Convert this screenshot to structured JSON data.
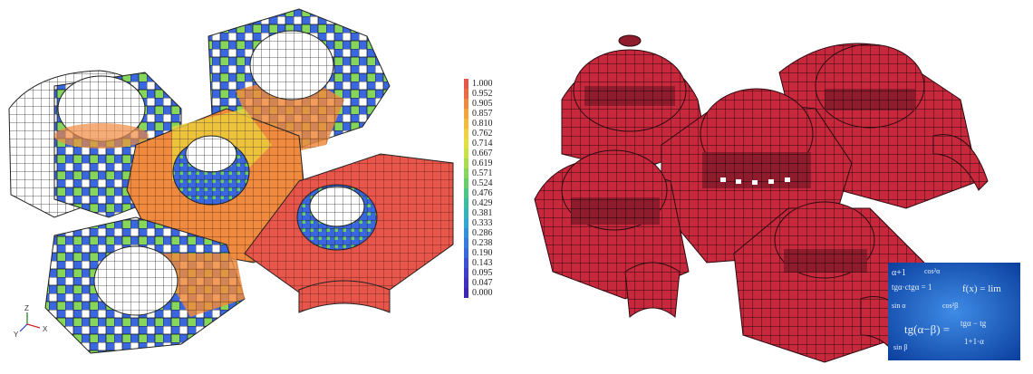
{
  "legend": {
    "values": [
      "1.000",
      "0.952",
      "0.905",
      "0.857",
      "0.810",
      "0.762",
      "0.714",
      "0.667",
      "0.619",
      "0.571",
      "0.524",
      "0.476",
      "0.429",
      "0.381",
      "0.333",
      "0.286",
      "0.238",
      "0.190",
      "0.143",
      "0.095",
      "0.047",
      "0.000"
    ],
    "colors": [
      "#e8554a",
      "#ec6a44",
      "#ef8a3e",
      "#f3a43b",
      "#f2bb3a",
      "#eed13c",
      "#e2e03f",
      "#c9e245",
      "#a8dd4f",
      "#86d65c",
      "#66cf6c",
      "#4bc784",
      "#3cbca0",
      "#35b3bd",
      "#32a6d2",
      "#3391dc",
      "#367ce0",
      "#3a66de",
      "#3d51d8",
      "#3f3fcf",
      "#4030c4",
      "#3f24b8"
    ]
  },
  "axis_triad": {
    "z": "Z",
    "y": "Y",
    "x": "X"
  },
  "math_overlay": {
    "lines": [
      "α+1",
      "cos²α",
      "tgα·ctgα = 1",
      "f(x) = lim",
      "sin α",
      "cos²β",
      "tg(α−β) =",
      "tgα − tg",
      "1+1·α",
      "sin β"
    ]
  },
  "colors": {
    "structure_red": "#c8283c",
    "structure_red_dark": "#8e1c2c",
    "mesh_line": "#2a0a10",
    "damage_high": "#e8554a",
    "damage_low": "#3f24b8",
    "undamaged": "#ffffff",
    "math_bg": "#0b3f9e"
  }
}
